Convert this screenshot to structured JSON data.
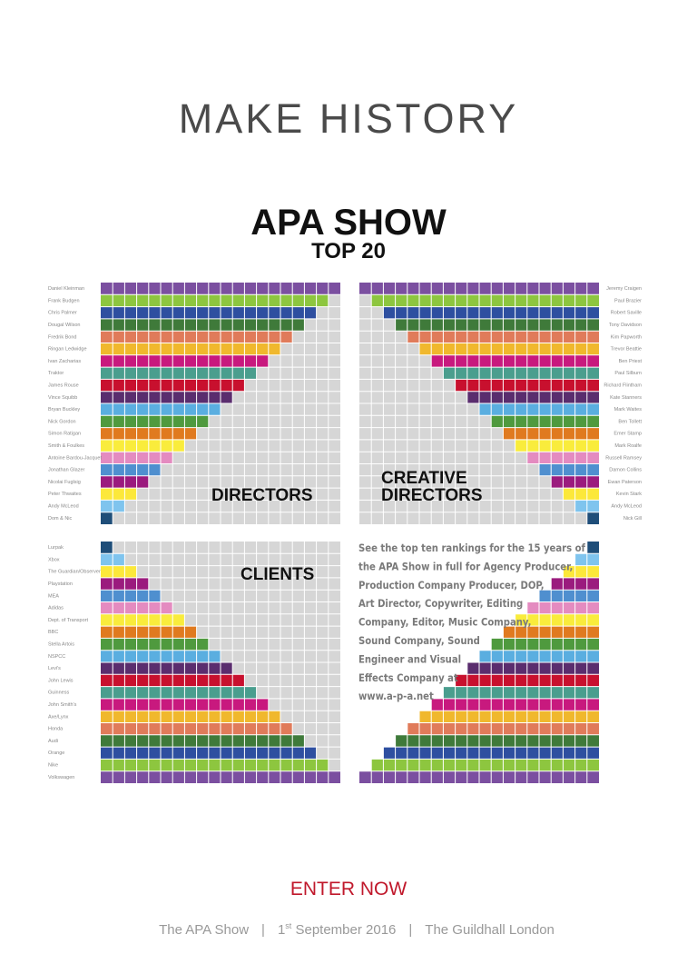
{
  "header": {
    "title": "MAKE HISTORY",
    "heading": "APA SHOW",
    "subheading": "TOP 20"
  },
  "colors": [
    "#1f4e79",
    "#7fc4ee",
    "#fce83a",
    "#9b1b7e",
    "#4f8fcf",
    "#e48bc0",
    "#f9ec3c",
    "#e07a1f",
    "#4f9a3e",
    "#5aaee0",
    "#5a2d6e",
    "#c8102e",
    "#4a9e8e",
    "#c8197e",
    "#f0b82d",
    "#e07b5a",
    "#3f7a3a",
    "#2e4fa0",
    "#8dc63f",
    "#7b4fa0"
  ],
  "directors": {
    "label": "DIRECTORS",
    "names": [
      "Daniel Kleinman",
      "Frank Budgen",
      "Chris Palmer",
      "Dougal Wilson",
      "Fredrik Bond",
      "Ringan Ledwidge",
      "Ivan Zacharias",
      "Traktor",
      "James Rouse",
      "Vince Squibb",
      "Bryan Buckley",
      "Nick Gordon",
      "Simon Ratigan",
      "Smith & Foulkes",
      "Antoine Bardou-Jacquet",
      "Jonathan Glazer",
      "Nicolai Fuglsig",
      "Peter Thwaites",
      "Andy McLeod",
      "Dom & Nic"
    ],
    "values": [
      20,
      19,
      18,
      17,
      16,
      15,
      14,
      13,
      12,
      11,
      10,
      9,
      8,
      7,
      6,
      5,
      4,
      3,
      2,
      1
    ]
  },
  "creative_directors": {
    "label_lines": [
      "CREATIVE",
      "DIRECTORS"
    ],
    "names": [
      "Jeremy Craigen",
      "Paul Brazier",
      "Robert Saville",
      "Tony Davidson",
      "Kim Papworth",
      "Trevor Beattie",
      "Ben Priest",
      "Paul Silburn",
      "Richard Flintham",
      "Kate Stanners",
      "Mark Waites",
      "Ben Tollett",
      "Emer Stamp",
      "Mark Roalfe",
      "Russell Ramsey",
      "Damon Collins",
      "Ewan Paterson",
      "Kevin Stark",
      "Andy McLeod",
      "Nick Gill"
    ],
    "values": [
      20,
      19,
      18,
      17,
      16,
      15,
      14,
      13,
      12,
      11,
      10,
      9,
      8,
      7,
      6,
      5,
      4,
      3,
      2,
      1
    ]
  },
  "clients": {
    "label": "CLIENTS",
    "names": [
      "Lurpak",
      "Xbox",
      "The Guardian/Observer",
      "Playstation",
      "MEA",
      "Adidas",
      "Dept. of Transport",
      "BBC",
      "Stella Artois",
      "NSPCC",
      "Levi's",
      "John Lewis",
      "Guinness",
      "John Smith's",
      "Axe/Lynx",
      "Honda",
      "Audi",
      "Orange",
      "Nike",
      "Volkswagen"
    ],
    "values": [
      1,
      2,
      3,
      4,
      5,
      6,
      7,
      8,
      9,
      10,
      11,
      12,
      13,
      14,
      15,
      16,
      17,
      18,
      19,
      20
    ]
  },
  "info_lines": [
    "See the top ten rankings for the 15 years of",
    "the APA Show in full for Agency Producer,",
    "Production Company Producer, DOP,",
    "Art Director, Copywriter, Editing",
    "Company, Editor, Music Company,",
    "Sound Company, Sound",
    "Engineer and Visual",
    "Effects Company at",
    "www.a-p-a.net"
  ],
  "footer": {
    "cta": "ENTER NOW",
    "show": "The APA Show",
    "day": "1",
    "suffix": "st",
    "date": " September 2016",
    "venue": "The Guildhall London"
  }
}
